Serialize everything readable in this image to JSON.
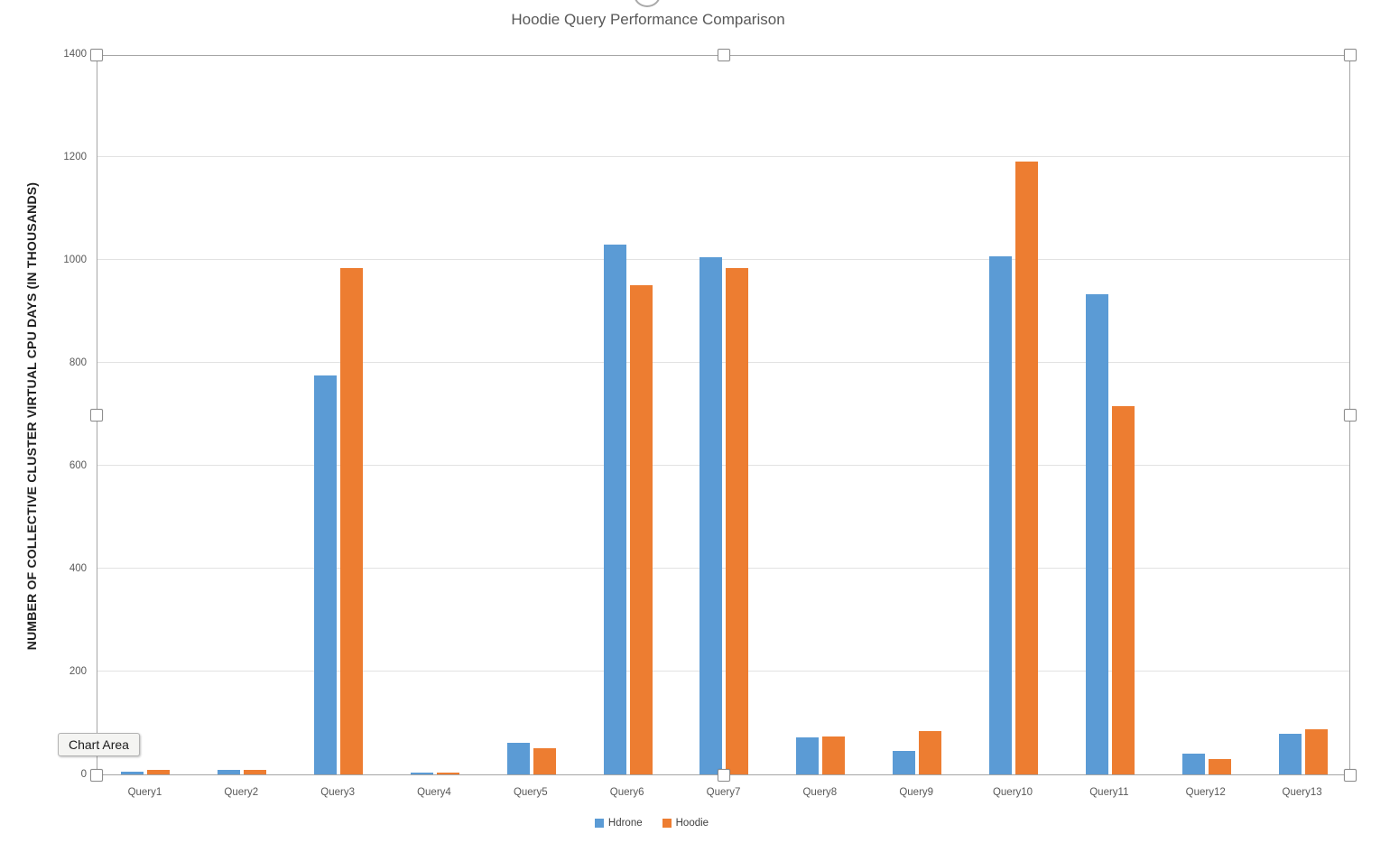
{
  "overlay": {
    "tooltip_label": "Chart Area"
  },
  "chart_data": {
    "type": "bar",
    "title": "Hoodie Query Performance Comparison",
    "y_axis_title": "NUMBER OF COLLECTIVE CLUSTER VIRTUAL CPU DAYS (IN THOUSANDS)",
    "categories": [
      "Query1",
      "Query2",
      "Query3",
      "Query4",
      "Query5",
      "Query6",
      "Query7",
      "Query8",
      "Query9",
      "Query10",
      "Query11",
      "Query12",
      "Query13"
    ],
    "series": [
      {
        "name": "Hdrone",
        "color": "#5B9BD5",
        "values": [
          5,
          8,
          775,
          4,
          62,
          1030,
          1005,
          72,
          46,
          1007,
          933,
          41,
          79
        ]
      },
      {
        "name": "Hoodie",
        "color": "#ED7D31",
        "values": [
          9,
          8,
          985,
          4,
          50,
          950,
          985,
          74,
          85,
          1192,
          715,
          30,
          88
        ]
      }
    ],
    "y_ticks": [
      0,
      200,
      400,
      600,
      800,
      1000,
      1200,
      1400
    ],
    "ylim": [
      0,
      1400
    ],
    "grid": true,
    "legend_position": "bottom",
    "colors": {
      "gridline": "#e2e2e2",
      "axis_text": "#595959",
      "selection_border": "#a6a6a6"
    }
  }
}
